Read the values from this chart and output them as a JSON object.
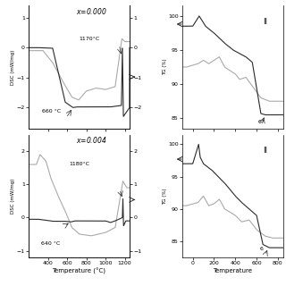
{
  "fig_width": 3.2,
  "fig_height": 3.2,
  "dpi": 100,
  "line_colors": {
    "dark": "#2a2a2a",
    "gray": "#aaaaaa"
  },
  "xlabel_left": "Temperature (°C)",
  "xlabel_right": "Temperature",
  "ylabel_dsc": "DSC (mW/mg)",
  "ylabel_tg": "TG (%)"
}
